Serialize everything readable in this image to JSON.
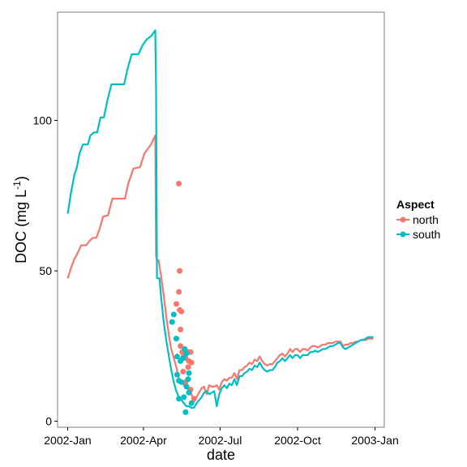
{
  "chart_data": {
    "type": "line",
    "title": "",
    "xlabel": "date",
    "ylabel": "DOC (mg L",
    "ylabel_sup": "-1",
    "ylabel_close": ")",
    "x_ticks": [
      "2002-Jan",
      "2002-Apr",
      "2002-Jul",
      "2002-Oct",
      "2003-Jan"
    ],
    "x_tick_dates": [
      "2002-01-01",
      "2002-04-01",
      "2002-07-01",
      "2002-10-01",
      "2003-01-01"
    ],
    "xlim": [
      "2001-12-20",
      "2003-01-12"
    ],
    "y_ticks": [
      0,
      50,
      100
    ],
    "ylim": [
      -2,
      136
    ],
    "grid": false,
    "legend": {
      "title": "Aspect",
      "position": "right",
      "entries": [
        {
          "label": "north",
          "color": "#F8766D"
        },
        {
          "label": "south",
          "color": "#00BFC4"
        }
      ]
    },
    "series": [
      {
        "name": "north",
        "color": "#F8766D",
        "line": [
          [
            "2002-01-01",
            47.5
          ],
          [
            "2002-01-05",
            51
          ],
          [
            "2002-01-09",
            54
          ],
          [
            "2002-01-13",
            56
          ],
          [
            "2002-01-17",
            58.5
          ],
          [
            "2002-01-23",
            58.5
          ],
          [
            "2002-01-27",
            60
          ],
          [
            "2002-01-31",
            61
          ],
          [
            "2002-02-04",
            61
          ],
          [
            "2002-02-08",
            64
          ],
          [
            "2002-02-12",
            68
          ],
          [
            "2002-02-18",
            68.5
          ],
          [
            "2002-02-23",
            74
          ],
          [
            "2002-03-01",
            74
          ],
          [
            "2002-03-06",
            74
          ],
          [
            "2002-03-10",
            74
          ],
          [
            "2002-03-14",
            79
          ],
          [
            "2002-03-20",
            84
          ],
          [
            "2002-03-28",
            84.5
          ],
          [
            "2002-04-02",
            89
          ],
          [
            "2002-04-10",
            92
          ],
          [
            "2002-04-15",
            95
          ],
          [
            "2002-04-16",
            55
          ],
          [
            "2002-04-17",
            53.5
          ],
          [
            "2002-04-19",
            53.5
          ],
          [
            "2002-04-22",
            48
          ],
          [
            "2002-04-25",
            42
          ],
          [
            "2002-04-28",
            35
          ],
          [
            "2002-05-01",
            29
          ],
          [
            "2002-05-04",
            24
          ],
          [
            "2002-05-07",
            21
          ],
          [
            "2002-05-10",
            18
          ],
          [
            "2002-05-13",
            14
          ],
          [
            "2002-05-16",
            13
          ],
          [
            "2002-05-19",
            12
          ],
          [
            "2002-05-22",
            11
          ],
          [
            "2002-05-25",
            10.5
          ],
          [
            "2002-05-28",
            9
          ],
          [
            "2002-05-31",
            6.5
          ],
          [
            "2002-06-03",
            8
          ],
          [
            "2002-06-06",
            9.5
          ],
          [
            "2002-06-09",
            11
          ],
          [
            "2002-06-12",
            11.5
          ],
          [
            "2002-06-15",
            9
          ],
          [
            "2002-06-18",
            12
          ],
          [
            "2002-06-21",
            11.5
          ],
          [
            "2002-06-24",
            11.5
          ],
          [
            "2002-06-27",
            12
          ],
          [
            "2002-06-30",
            10.5
          ],
          [
            "2002-07-03",
            13
          ],
          [
            "2002-07-06",
            14
          ],
          [
            "2002-07-09",
            13.5
          ],
          [
            "2002-07-12",
            14.5
          ],
          [
            "2002-07-15",
            14.5
          ],
          [
            "2002-07-18",
            16
          ],
          [
            "2002-07-21",
            14
          ],
          [
            "2002-07-24",
            17
          ],
          [
            "2002-07-27",
            17
          ],
          [
            "2002-07-30",
            18
          ],
          [
            "2002-08-02",
            18.5
          ],
          [
            "2002-08-05",
            19.5
          ],
          [
            "2002-08-08",
            19
          ],
          [
            "2002-08-11",
            20.5
          ],
          [
            "2002-08-14",
            20
          ],
          [
            "2002-08-17",
            21.5
          ],
          [
            "2002-08-20",
            20
          ],
          [
            "2002-08-23",
            19
          ],
          [
            "2002-08-26",
            18.5
          ],
          [
            "2002-08-29",
            19
          ],
          [
            "2002-09-01",
            19
          ],
          [
            "2002-09-04",
            20
          ],
          [
            "2002-09-07",
            21
          ],
          [
            "2002-09-10",
            22
          ],
          [
            "2002-09-13",
            22.5
          ],
          [
            "2002-09-16",
            21.5
          ],
          [
            "2002-09-19",
            22.5
          ],
          [
            "2002-09-22",
            24
          ],
          [
            "2002-09-25",
            23
          ],
          [
            "2002-09-28",
            24
          ],
          [
            "2002-10-01",
            24
          ],
          [
            "2002-10-04",
            23
          ],
          [
            "2002-10-07",
            24
          ],
          [
            "2002-10-10",
            24
          ],
          [
            "2002-10-13",
            23.5
          ],
          [
            "2002-10-16",
            24.5
          ],
          [
            "2002-10-19",
            25
          ],
          [
            "2002-10-22",
            25
          ],
          [
            "2002-10-25",
            24.5
          ],
          [
            "2002-10-28",
            25
          ],
          [
            "2002-10-31",
            25.5
          ],
          [
            "2002-11-03",
            25.5
          ],
          [
            "2002-11-06",
            26
          ],
          [
            "2002-11-09",
            26
          ],
          [
            "2002-11-12",
            26
          ],
          [
            "2002-11-15",
            26.5
          ],
          [
            "2002-11-18",
            26.5
          ],
          [
            "2002-11-21",
            26.5
          ],
          [
            "2002-11-24",
            25
          ],
          [
            "2002-11-27",
            25.5
          ],
          [
            "2002-11-30",
            25.5
          ],
          [
            "2002-12-03",
            26
          ],
          [
            "2002-12-06",
            26
          ],
          [
            "2002-12-09",
            26.5
          ],
          [
            "2002-12-12",
            26.5
          ],
          [
            "2002-12-15",
            27
          ],
          [
            "2002-12-18",
            27
          ],
          [
            "2002-12-21",
            27
          ],
          [
            "2002-12-24",
            27.5
          ],
          [
            "2002-12-27",
            27.5
          ],
          [
            "2002-12-30",
            27.5
          ]
        ],
        "points": [
          [
            "2002-05-13",
            79
          ],
          [
            "2002-05-14",
            50
          ],
          [
            "2002-05-13",
            43
          ],
          [
            "2002-05-10",
            39
          ],
          [
            "2002-05-14",
            37
          ],
          [
            "2002-05-16",
            36.5
          ],
          [
            "2002-05-15",
            30.5
          ],
          [
            "2002-05-15",
            25
          ],
          [
            "2002-05-17",
            23
          ],
          [
            "2002-05-19",
            22
          ],
          [
            "2002-05-21",
            21
          ],
          [
            "2002-05-24",
            23
          ],
          [
            "2002-05-25",
            20
          ],
          [
            "2002-05-27",
            23
          ],
          [
            "2002-05-28",
            19.5
          ],
          [
            "2002-05-18",
            16.5
          ],
          [
            "2002-05-24",
            18
          ],
          [
            "2002-05-21",
            13
          ],
          [
            "2002-05-27",
            10.5
          ],
          [
            "2002-05-31",
            7.5
          ]
        ]
      },
      {
        "name": "south",
        "color": "#00BFC4",
        "line": [
          [
            "2002-01-01",
            69
          ],
          [
            "2002-01-05",
            76
          ],
          [
            "2002-01-09",
            82
          ],
          [
            "2002-01-12",
            84.5
          ],
          [
            "2002-01-15",
            89
          ],
          [
            "2002-01-19",
            92
          ],
          [
            "2002-01-25",
            92
          ],
          [
            "2002-01-28",
            95
          ],
          [
            "2002-02-01",
            96
          ],
          [
            "2002-02-05",
            96
          ],
          [
            "2002-02-09",
            101
          ],
          [
            "2002-02-13",
            101
          ],
          [
            "2002-02-17",
            106.5
          ],
          [
            "2002-02-22",
            112
          ],
          [
            "2002-02-28",
            112
          ],
          [
            "2002-03-05",
            112
          ],
          [
            "2002-03-09",
            112
          ],
          [
            "2002-03-13",
            117
          ],
          [
            "2002-03-18",
            122
          ],
          [
            "2002-03-26",
            122
          ],
          [
            "2002-03-31",
            125
          ],
          [
            "2002-04-05",
            127
          ],
          [
            "2002-04-10",
            128
          ],
          [
            "2002-04-15",
            130
          ],
          [
            "2002-04-16",
            110
          ],
          [
            "2002-04-17",
            47.5
          ],
          [
            "2002-04-20",
            47.5
          ],
          [
            "2002-04-22",
            41
          ],
          [
            "2002-04-25",
            33
          ],
          [
            "2002-04-28",
            27
          ],
          [
            "2002-05-01",
            22
          ],
          [
            "2002-05-04",
            17
          ],
          [
            "2002-05-07",
            13
          ],
          [
            "2002-05-10",
            10
          ],
          [
            "2002-05-13",
            8
          ],
          [
            "2002-05-16",
            7
          ],
          [
            "2002-05-19",
            6
          ],
          [
            "2002-05-22",
            5
          ],
          [
            "2002-05-25",
            5
          ],
          [
            "2002-05-28",
            4.5
          ],
          [
            "2002-05-31",
            4.5
          ],
          [
            "2002-06-03",
            6
          ],
          [
            "2002-06-06",
            7
          ],
          [
            "2002-06-09",
            8
          ],
          [
            "2002-06-12",
            9.5
          ],
          [
            "2002-06-15",
            10
          ],
          [
            "2002-06-18",
            9
          ],
          [
            "2002-06-21",
            9.5
          ],
          [
            "2002-06-24",
            10
          ],
          [
            "2002-06-27",
            5
          ],
          [
            "2002-06-30",
            9
          ],
          [
            "2002-07-03",
            11
          ],
          [
            "2002-07-06",
            12
          ],
          [
            "2002-07-09",
            11
          ],
          [
            "2002-07-12",
            12.5
          ],
          [
            "2002-07-15",
            12
          ],
          [
            "2002-07-18",
            14
          ],
          [
            "2002-07-21",
            12
          ],
          [
            "2002-07-24",
            15
          ],
          [
            "2002-07-27",
            15
          ],
          [
            "2002-07-30",
            16
          ],
          [
            "2002-08-02",
            16.5
          ],
          [
            "2002-08-05",
            17.5
          ],
          [
            "2002-08-08",
            17
          ],
          [
            "2002-08-11",
            18.5
          ],
          [
            "2002-08-14",
            18
          ],
          [
            "2002-08-17",
            19.5
          ],
          [
            "2002-08-20",
            18
          ],
          [
            "2002-08-23",
            17
          ],
          [
            "2002-08-26",
            16.5
          ],
          [
            "2002-08-29",
            17
          ],
          [
            "2002-09-01",
            17
          ],
          [
            "2002-09-04",
            18
          ],
          [
            "2002-09-07",
            19.5
          ],
          [
            "2002-09-10",
            20
          ],
          [
            "2002-09-13",
            21
          ],
          [
            "2002-09-16",
            20
          ],
          [
            "2002-09-19",
            21
          ],
          [
            "2002-09-22",
            22
          ],
          [
            "2002-09-25",
            21
          ],
          [
            "2002-09-28",
            22
          ],
          [
            "2002-10-01",
            22
          ],
          [
            "2002-10-04",
            21
          ],
          [
            "2002-10-07",
            22
          ],
          [
            "2002-10-10",
            22
          ],
          [
            "2002-10-13",
            22
          ],
          [
            "2002-10-16",
            23
          ],
          [
            "2002-10-19",
            23
          ],
          [
            "2002-10-22",
            23.5
          ],
          [
            "2002-10-25",
            23
          ],
          [
            "2002-10-28",
            23.5
          ],
          [
            "2002-10-31",
            24
          ],
          [
            "2002-11-03",
            24
          ],
          [
            "2002-11-06",
            24.5
          ],
          [
            "2002-11-09",
            25
          ],
          [
            "2002-11-12",
            25
          ],
          [
            "2002-11-15",
            25.5
          ],
          [
            "2002-11-18",
            26
          ],
          [
            "2002-11-21",
            26
          ],
          [
            "2002-11-24",
            24.5
          ],
          [
            "2002-11-27",
            24
          ],
          [
            "2002-11-30",
            24.5
          ],
          [
            "2002-12-03",
            25
          ],
          [
            "2002-12-06",
            25.5
          ],
          [
            "2002-12-09",
            26
          ],
          [
            "2002-12-12",
            26.5
          ],
          [
            "2002-12-15",
            27
          ],
          [
            "2002-12-18",
            27
          ],
          [
            "2002-12-21",
            27.5
          ],
          [
            "2002-12-24",
            28
          ],
          [
            "2002-12-27",
            28
          ],
          [
            "2002-12-30",
            28
          ]
        ],
        "points": [
          [
            "2002-05-05",
            33
          ],
          [
            "2002-05-07",
            35.5
          ],
          [
            "2002-05-10",
            27.5
          ],
          [
            "2002-05-11",
            21.5
          ],
          [
            "2002-05-11",
            15.5
          ],
          [
            "2002-05-15",
            20
          ],
          [
            "2002-05-18",
            21
          ],
          [
            "2002-05-13",
            13.5
          ],
          [
            "2002-05-16",
            13
          ],
          [
            "2002-05-20",
            24
          ],
          [
            "2002-05-22",
            22.5
          ],
          [
            "2002-05-24",
            14
          ],
          [
            "2002-05-22",
            11.5
          ],
          [
            "2002-05-25",
            16
          ],
          [
            "2002-05-13",
            7.5
          ],
          [
            "2002-05-19",
            8
          ],
          [
            "2002-05-25",
            9.5
          ],
          [
            "2002-05-28",
            6
          ],
          [
            "2002-05-21",
            3
          ]
        ]
      }
    ]
  }
}
